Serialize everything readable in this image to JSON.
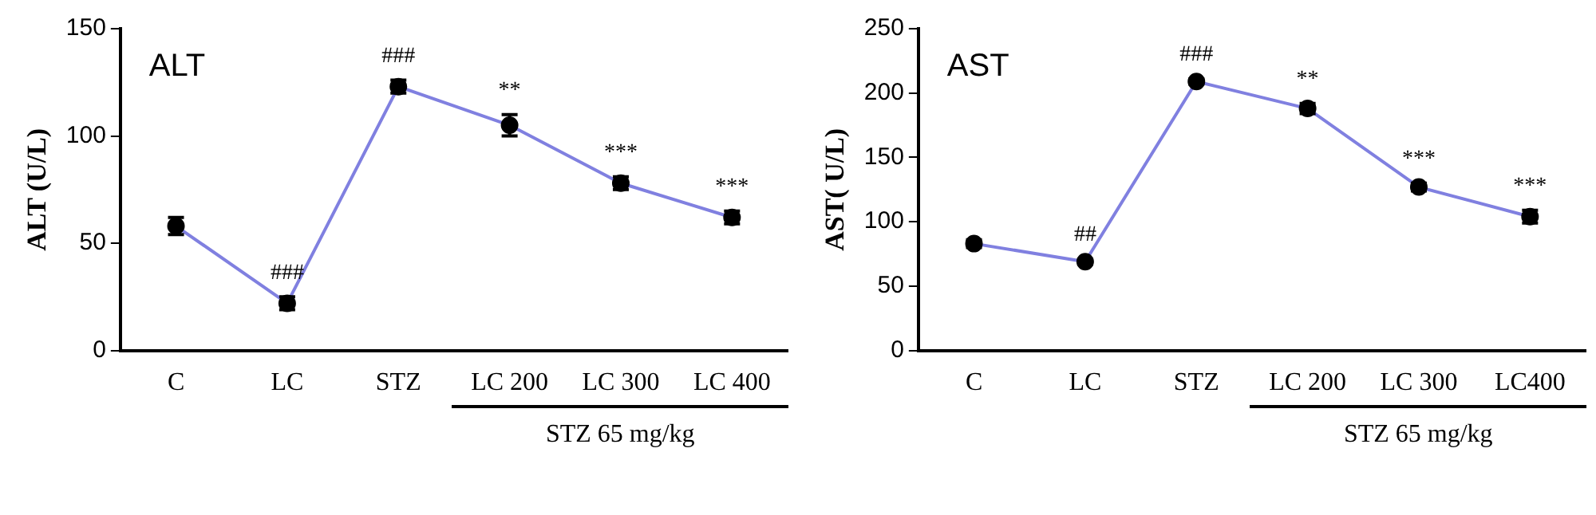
{
  "chart_data": [
    {
      "type": "line",
      "title": "ALT",
      "ylabel": "ALT (U/L)",
      "categories": [
        "C",
        "LC",
        "STZ",
        "LC 200",
        "LC 300",
        "LC 400"
      ],
      "series": [
        {
          "color": "#8080e0",
          "values": [
            58,
            22,
            123,
            105,
            78,
            62
          ],
          "errors": [
            4,
            3,
            3,
            5,
            3,
            3
          ]
        }
      ],
      "ylim": [
        0,
        150
      ],
      "yticks": [
        0,
        50,
        100,
        150
      ],
      "grid": false,
      "legend": false,
      "marker": "circle",
      "line_style": "solid",
      "annotations": [
        {
          "text": "###",
          "x": "LC",
          "y": 22
        },
        {
          "text": "###",
          "x": "STZ",
          "y": 123
        },
        {
          "text": "**",
          "x": "LC 200",
          "y": 105
        },
        {
          "text": "***",
          "x": "LC 300",
          "y": 78
        },
        {
          "text": "***",
          "x": "LC 400",
          "y": 62
        },
        "STZ 65 mg/kg"
      ]
    },
    {
      "type": "line",
      "title": "AST",
      "ylabel": "AST( U/L)",
      "categories": [
        "C",
        "LC",
        "STZ",
        "LC 200",
        "LC 300",
        "LC400"
      ],
      "series": [
        {
          "color": "#8080e0",
          "values": [
            83,
            69,
            209,
            188,
            127,
            104
          ],
          "errors": [
            3,
            2,
            2,
            4,
            3,
            5
          ]
        }
      ],
      "ylim": [
        0,
        250
      ],
      "yticks": [
        0,
        50,
        100,
        150,
        200,
        250
      ],
      "grid": false,
      "legend": false,
      "marker": "circle",
      "line_style": "solid",
      "annotations": [
        {
          "text": "##",
          "x": "LC",
          "y": 69
        },
        {
          "text": "###",
          "x": "STZ",
          "y": 209
        },
        {
          "text": "**",
          "x": "LC 200",
          "y": 188
        },
        {
          "text": "***",
          "x": "LC 300",
          "y": 127
        },
        {
          "text": "***",
          "x": "LC400",
          "y": 104
        },
        "STZ 65 mg/kg"
      ]
    }
  ]
}
